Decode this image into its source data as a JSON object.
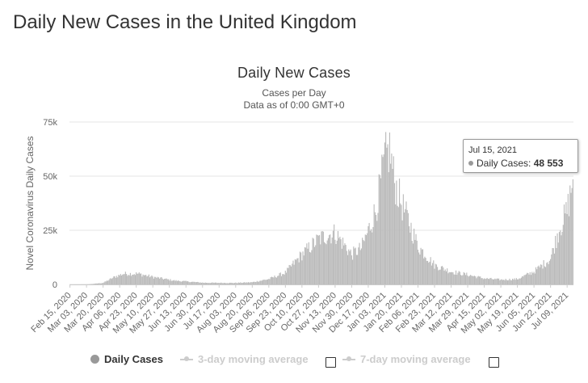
{
  "page": {
    "title": "Daily New Cases in the United Kingdom"
  },
  "chart_data": {
    "type": "bar",
    "title": "Daily New Cases",
    "subtitle": "Cases per Day",
    "subtitle2": "Data as of 0:00 GMT+0",
    "ylabel": "Novel Coronavirus Daily Cases",
    "ylim": [
      0,
      75000
    ],
    "y_ticks": [
      0,
      25000,
      50000,
      75000
    ],
    "y_tick_labels": [
      "0",
      "25k",
      "50k",
      "75k"
    ],
    "x_tick_labels": [
      "Feb 15, 2020",
      "Mar 03, 2020",
      "Mar 20, 2020",
      "Apr 06, 2020",
      "Apr 23, 2020",
      "May 10, 2020",
      "May 27, 2020",
      "Jun 13, 2020",
      "Jun 30, 2020",
      "Jul 17, 2020",
      "Aug 03, 2020",
      "Aug 20, 2020",
      "Sep 06, 2020",
      "Sep 23, 2020",
      "Oct 10, 2020",
      "Oct 27, 2020",
      "Nov 13, 2020",
      "Nov 30, 2020",
      "Dec 17, 2020",
      "Jan 03, 2021",
      "Jan 20, 2021",
      "Feb 06, 2021",
      "Feb 23, 2021",
      "Mar 12, 2021",
      "Mar 29, 2021",
      "Apr 15, 2021",
      "May 02, 2021",
      "May 19, 2021",
      "Jun 05, 2021",
      "Jun 22, 2021",
      "Jul 09, 2021"
    ],
    "start_date": "Feb 15, 2020",
    "end_date": "Jul 15, 2021",
    "series": [
      {
        "name": "Daily Cases",
        "color": "#bbbbbb",
        "visible": true,
        "anchors": [
          {
            "date": "Feb 15, 2020",
            "value": 0
          },
          {
            "date": "Mar 05, 2020",
            "value": 50
          },
          {
            "date": "Mar 20, 2020",
            "value": 700
          },
          {
            "date": "Apr 01, 2020",
            "value": 3500
          },
          {
            "date": "Apr 10, 2020",
            "value": 5000
          },
          {
            "date": "Apr 25, 2020",
            "value": 5000
          },
          {
            "date": "May 10, 2020",
            "value": 3500
          },
          {
            "date": "Jun 01, 2020",
            "value": 1800
          },
          {
            "date": "Jul 01, 2020",
            "value": 800
          },
          {
            "date": "Aug 01, 2020",
            "value": 700
          },
          {
            "date": "Aug 20, 2020",
            "value": 1000
          },
          {
            "date": "Sep 06, 2020",
            "value": 2500
          },
          {
            "date": "Sep 23, 2020",
            "value": 5500
          },
          {
            "date": "Oct 10, 2020",
            "value": 14000
          },
          {
            "date": "Oct 27, 2020",
            "value": 21000
          },
          {
            "date": "Nov 05, 2020",
            "value": 23000
          },
          {
            "date": "Nov 13, 2020",
            "value": 24000
          },
          {
            "date": "Nov 30, 2020",
            "value": 14000
          },
          {
            "date": "Dec 10, 2020",
            "value": 17000
          },
          {
            "date": "Dec 17, 2020",
            "value": 25000
          },
          {
            "date": "Dec 25, 2020",
            "value": 35000
          },
          {
            "date": "Jan 03, 2021",
            "value": 58000
          },
          {
            "date": "Jan 08, 2021",
            "value": 63000
          },
          {
            "date": "Jan 13, 2021",
            "value": 48000
          },
          {
            "date": "Jan 20, 2021",
            "value": 38000
          },
          {
            "date": "Feb 06, 2021",
            "value": 18000
          },
          {
            "date": "Feb 23, 2021",
            "value": 9000
          },
          {
            "date": "Mar 12, 2021",
            "value": 6000
          },
          {
            "date": "Mar 29, 2021",
            "value": 4500
          },
          {
            "date": "Apr 15, 2021",
            "value": 2800
          },
          {
            "date": "May 02, 2021",
            "value": 2200
          },
          {
            "date": "May 19, 2021",
            "value": 2500
          },
          {
            "date": "Jun 05, 2021",
            "value": 6000
          },
          {
            "date": "Jun 22, 2021",
            "value": 12000
          },
          {
            "date": "Jul 01, 2021",
            "value": 26000
          },
          {
            "date": "Jul 09, 2021",
            "value": 34000
          },
          {
            "date": "Jul 15, 2021",
            "value": 48553
          }
        ]
      }
    ],
    "legend": [
      {
        "label": "Daily Cases",
        "color": "#999999",
        "enabled": true
      },
      {
        "label": "3-day moving average",
        "color": "#cccccc",
        "enabled": false
      },
      {
        "label": "7-day moving average",
        "color": "#cccccc",
        "enabled": false
      }
    ],
    "tooltip": {
      "date": "Jul 15, 2021",
      "series": "Daily Cases:",
      "value": "48 553"
    }
  }
}
